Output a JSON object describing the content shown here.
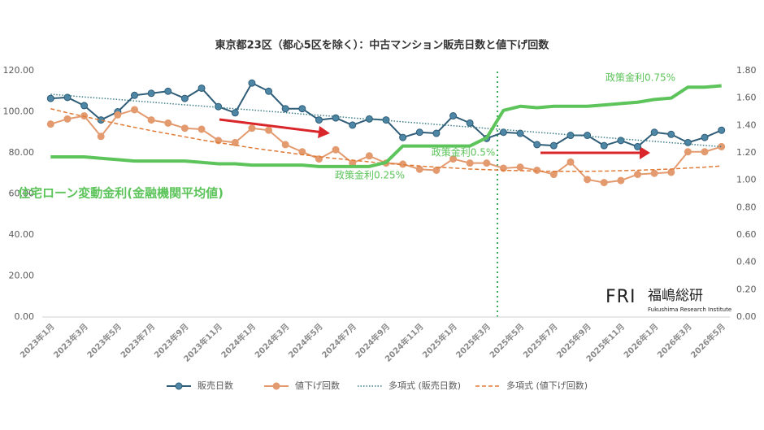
{
  "chart_data": {
    "type": "line",
    "title": "東京都23区（都心5区を除く）：中古マンション販売日数と値下げ回数",
    "categories": [
      "2023年1月",
      null,
      "2023年3月",
      null,
      "2023年5月",
      null,
      "2023年7月",
      null,
      "2023年9月",
      null,
      "2023年11月",
      null,
      "2024年1月",
      null,
      "2024年3月",
      null,
      "2024年5月",
      null,
      "2024年7月",
      null,
      "2024年9月",
      null,
      "2024年11月",
      null,
      "2025年1月",
      null,
      "2025年3月",
      null,
      "2025年5月",
      null,
      "2025年7月",
      null,
      "2025年9月",
      null,
      "2025年11月",
      null,
      "2026年1月",
      null,
      "2026年3月",
      null,
      "2026年5月"
    ],
    "series": [
      {
        "name": "販売日数",
        "color": "#2f5d78",
        "marker_color": "#4e86a6",
        "markers": true,
        "style": "solid",
        "values": [
          106.5,
          107,
          103,
          96,
          100,
          108,
          109,
          110,
          106.5,
          111.5,
          102.5,
          99.5,
          114,
          110,
          101.5,
          101.5,
          96,
          97,
          93.5,
          96.5,
          96,
          87.5,
          90,
          89.5,
          98,
          94.5,
          87,
          90,
          89.5,
          84,
          83.5,
          88.5,
          88.5,
          83.5,
          86,
          83,
          90,
          89,
          85,
          87.5,
          91
        ]
      },
      {
        "name": "値下げ回数",
        "color": "#e39a6e",
        "marker_color": "#e39a6e",
        "markers": true,
        "style": "solid",
        "values": [
          94,
          96.5,
          98,
          88,
          98.5,
          101,
          96,
          94.5,
          92,
          91.5,
          86,
          85,
          92,
          91,
          84,
          80.5,
          77,
          81.5,
          75,
          78.5,
          75,
          74.5,
          72,
          71.5,
          77,
          75,
          75,
          72.5,
          73,
          71.5,
          69.5,
          75.5,
          67,
          65.5,
          66.5,
          69.5,
          70,
          70.5,
          80.5,
          80.5,
          83
        ]
      },
      {
        "name": "多項式 (販売日数)",
        "color": "#3c7d88",
        "markers": false,
        "style": "dotted",
        "values": [
          108.5,
          107.9,
          107.2,
          106.6,
          106.0,
          105.3,
          104.7,
          104.0,
          103.4,
          102.8,
          102.1,
          101.5,
          100.9,
          100.2,
          99.6,
          98.9,
          98.3,
          97.7,
          97.0,
          96.4,
          95.8,
          95.1,
          94.5,
          93.8,
          93.2,
          92.6,
          91.9,
          91.3,
          90.7,
          90.0,
          89.4,
          88.7,
          88.1,
          87.5,
          86.8,
          86.2,
          85.6,
          84.9,
          84.3,
          83.6,
          83.0
        ]
      },
      {
        "name": "多項式 (値下げ回数)",
        "color": "#e07a35",
        "markers": false,
        "style": "dashed",
        "values": [
          101.5,
          99.5,
          97.7,
          95.9,
          94.1,
          92.4,
          90.8,
          89.3,
          87.8,
          86.3,
          85.0,
          83.7,
          82.4,
          81.3,
          80.2,
          79.1,
          78.1,
          77.2,
          76.4,
          75.6,
          74.8,
          74.2,
          73.6,
          73.0,
          72.6,
          72.1,
          71.8,
          71.5,
          71.3,
          71.1,
          71.0,
          71.0,
          71.0,
          71.1,
          71.3,
          71.5,
          71.8,
          72.1,
          72.6,
          73.0,
          73.6
        ]
      },
      {
        "name": "住宅ローン変動金利(金融機関平均値)",
        "color": "#5cc45a",
        "markers": false,
        "style": "thick",
        "axis": "y2",
        "in_legend": false,
        "values": [
          1.17,
          1.17,
          1.17,
          1.16,
          1.15,
          1.14,
          1.14,
          1.14,
          1.14,
          1.13,
          1.12,
          1.12,
          1.11,
          1.11,
          1.11,
          1.11,
          1.1,
          1.1,
          1.1,
          1.1,
          1.13,
          1.25,
          1.25,
          1.25,
          1.25,
          1.25,
          1.31,
          1.51,
          1.54,
          1.53,
          1.54,
          1.54,
          1.54,
          1.55,
          1.56,
          1.57,
          1.59,
          1.6,
          1.68,
          1.68,
          1.69
        ]
      }
    ],
    "ylim": [
      0,
      120
    ],
    "yticks": [
      {
        "value": 0,
        "label": "0.00"
      },
      {
        "value": 20,
        "label": "20.00"
      },
      {
        "value": 40,
        "label": "40.00"
      },
      {
        "value": 60,
        "label": "60.00"
      },
      {
        "value": 80,
        "label": "80.00"
      },
      {
        "value": 100,
        "label": "100.00"
      },
      {
        "value": 120,
        "label": "120.00"
      }
    ],
    "y2lim": [
      0,
      1.8
    ],
    "y2ticks": [
      {
        "value": 0,
        "label": "0.00"
      },
      {
        "value": 0.2,
        "label": "0.20"
      },
      {
        "value": 0.4,
        "label": "0.40"
      },
      {
        "value": 0.6,
        "label": "0.60"
      },
      {
        "value": 0.8,
        "label": "0.80"
      },
      {
        "value": 1.0,
        "label": "1.00"
      },
      {
        "value": 1.2,
        "label": "1.20"
      },
      {
        "value": 1.4,
        "label": "1.40"
      },
      {
        "value": 1.6,
        "label": "1.60"
      },
      {
        "value": 1.8,
        "label": "1.80"
      }
    ],
    "grid": false,
    "annotations": [
      "政策金利0.25%",
      "政策金利0.5%",
      "政策金利0.75%"
    ],
    "legend": "bottom"
  },
  "logo": {
    "mark": "FRI",
    "name": "福嶋総研",
    "sub": "Fukushima Research Institute"
  }
}
